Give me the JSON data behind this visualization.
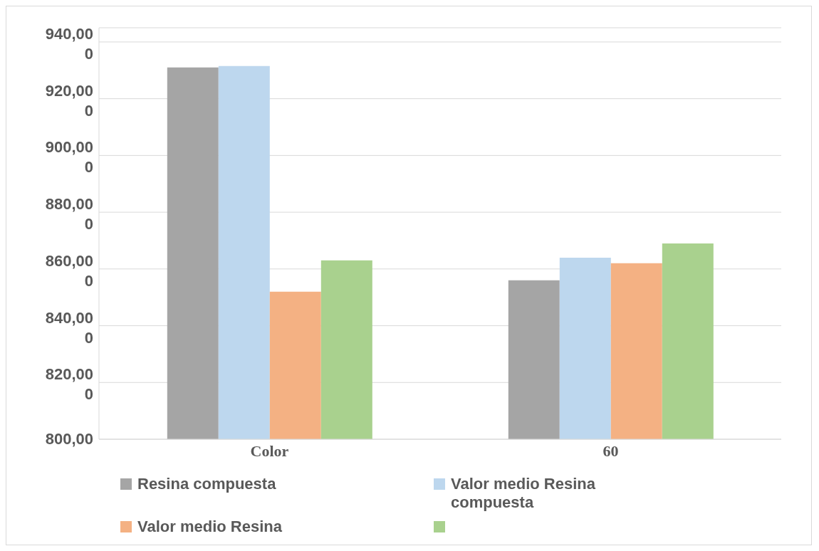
{
  "chart_data": {
    "type": "bar",
    "categories": [
      "Color",
      "60"
    ],
    "series": [
      {
        "name": "Resina compuesta",
        "color": "#a5a5a5",
        "values": [
          931,
          856
        ]
      },
      {
        "name": "Valor medio Resina compuesta",
        "color": "#bdd7ee",
        "values": [
          931.5,
          864
        ]
      },
      {
        "name": "Valor medio Resina",
        "color": "#f4b183",
        "values": [
          852,
          862
        ]
      },
      {
        "color": "#a9d18e",
        "values": [
          863,
          869
        ]
      }
    ],
    "ylim": [
      800,
      945
    ],
    "yticks": [
      {
        "value": 800,
        "label": "800,00"
      },
      {
        "value": 820,
        "label": "820,000"
      },
      {
        "value": 840,
        "label": "840,000"
      },
      {
        "value": 860,
        "label": "860,000"
      },
      {
        "value": 880,
        "label": "880,000"
      },
      {
        "value": 900,
        "label": "900,000"
      },
      {
        "value": 920,
        "label": "920,000"
      },
      {
        "value": 940,
        "label": "940,000"
      }
    ],
    "grid": "y",
    "legend": "bottom"
  }
}
